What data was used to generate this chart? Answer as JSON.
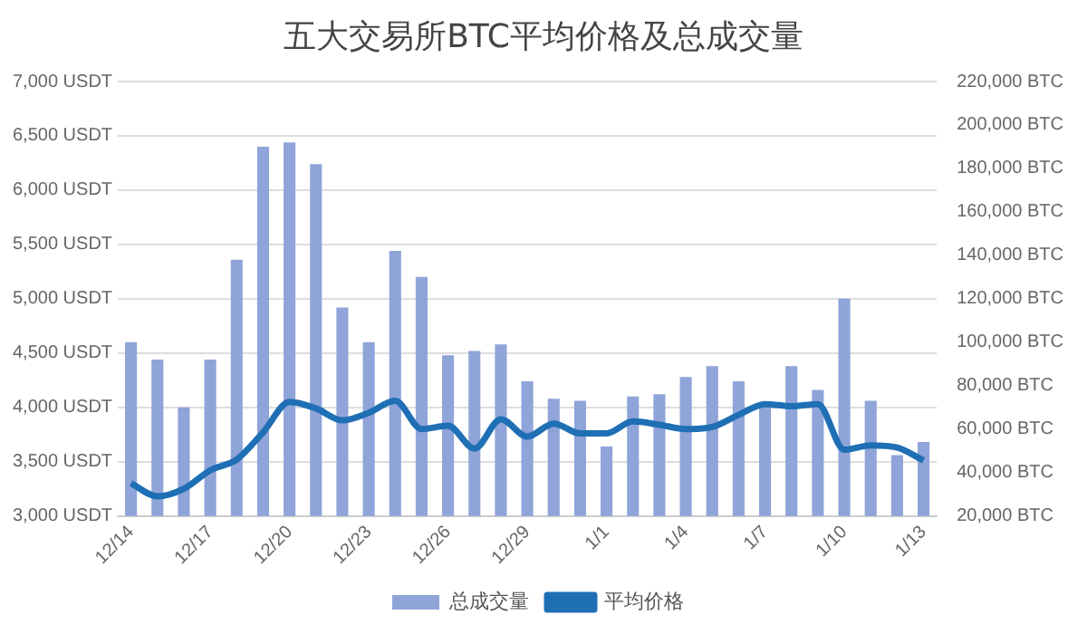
{
  "chart_data": {
    "type": "bar",
    "title": "五大交易所BTC平均价格及总成交量",
    "categories": [
      "12/14",
      null,
      null,
      "12/17",
      null,
      null,
      "12/20",
      null,
      null,
      "12/23",
      null,
      null,
      "12/26",
      null,
      null,
      "12/29",
      null,
      null,
      "1/1",
      null,
      null,
      "1/4",
      null,
      null,
      "1/7",
      null,
      null,
      "1/10",
      null,
      null,
      "1/13"
    ],
    "series": [
      {
        "name": "总成交量",
        "axis": "y2",
        "color": "#8fa4d8",
        "values": [
          100000,
          92000,
          70000,
          92000,
          138000,
          190000,
          192000,
          182000,
          116000,
          100000,
          142000,
          130000,
          94000,
          96000,
          99000,
          82000,
          74000,
          73000,
          52000,
          75000,
          76000,
          84000,
          89000,
          82000,
          72000,
          89000,
          78000,
          120000,
          73000,
          48000,
          54000
        ]
      },
      {
        "name": "平均价格",
        "type": "line",
        "color": "#1f6fb5",
        "values": [
          3300,
          3180,
          3250,
          3420,
          3520,
          3770,
          4050,
          3990,
          3880,
          3950,
          4060,
          3800,
          3830,
          3620,
          3890,
          3730,
          3850,
          3760,
          3760,
          3870,
          3840,
          3800,
          3820,
          3930,
          4030,
          4010,
          4030,
          3610,
          3650,
          3630,
          3510
        ]
      }
    ],
    "ylim": [
      3000,
      7000
    ],
    "yticks": [
      {
        "value": 3000,
        "label": "3,000 USDT"
      },
      {
        "value": 3500,
        "label": "3,500 USDT"
      },
      {
        "value": 4000,
        "label": "4,000 USDT"
      },
      {
        "value": 4500,
        "label": "4,500 USDT"
      },
      {
        "value": 5000,
        "label": "5,000 USDT"
      },
      {
        "value": 5500,
        "label": "5,500 USDT"
      },
      {
        "value": 6000,
        "label": "6,000 USDT"
      },
      {
        "value": 6500,
        "label": "6,500 USDT"
      },
      {
        "value": 7000,
        "label": "7,000 USDT"
      }
    ],
    "y2lim": [
      20000,
      220000
    ],
    "y2ticks": [
      {
        "value": 20000,
        "label": "20,000 BTC"
      },
      {
        "value": 40000,
        "label": "40,000 BTC"
      },
      {
        "value": 60000,
        "label": "60,000 BTC"
      },
      {
        "value": 80000,
        "label": "80,000 BTC"
      },
      {
        "value": 100000,
        "label": "100,000 BTC"
      },
      {
        "value": 120000,
        "label": "120,000 BTC"
      },
      {
        "value": 140000,
        "label": "140,000 BTC"
      },
      {
        "value": 160000,
        "label": "160,000 BTC"
      },
      {
        "value": 180000,
        "label": "180,000 BTC"
      },
      {
        "value": 200000,
        "label": "200,000 BTC"
      },
      {
        "value": 220000,
        "label": "220,000 BTC"
      }
    ],
    "grid": "y",
    "legend": "bottom",
    "marker": "none",
    "line_style": "solid"
  }
}
